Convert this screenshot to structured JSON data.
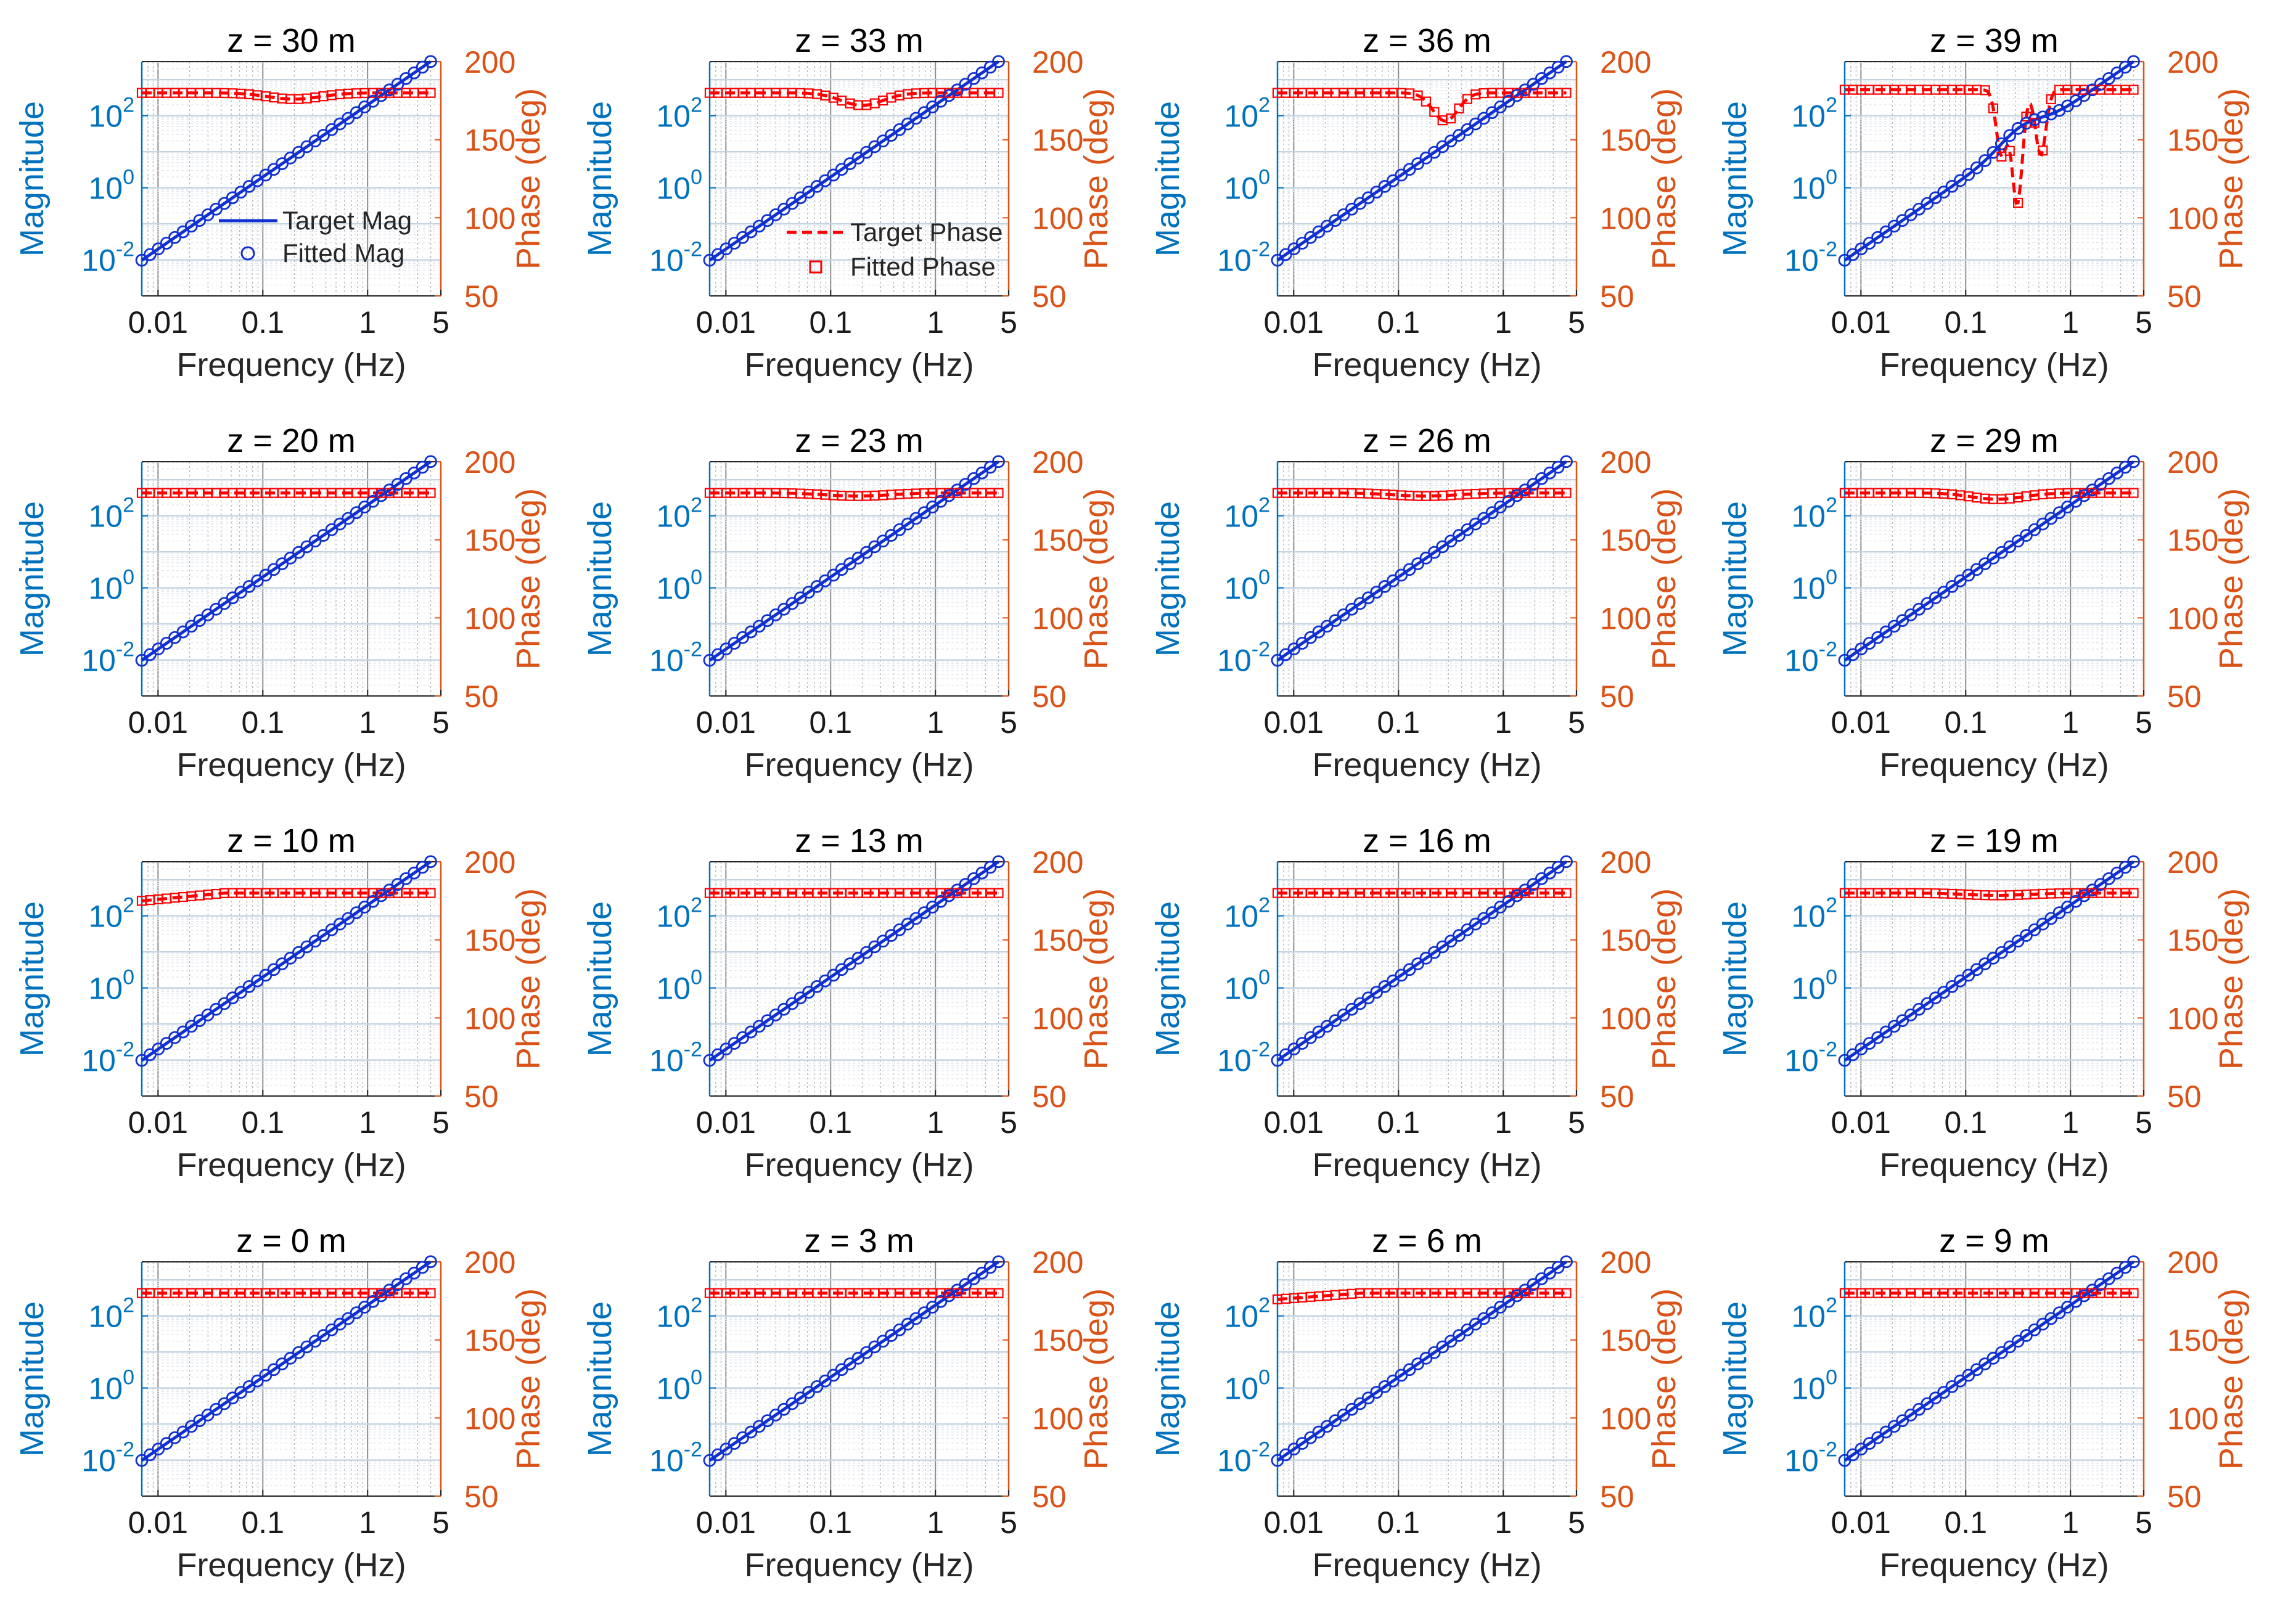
{
  "figure": {
    "xlabel": "Frequency (Hz)",
    "ylabel_left": "Magnitude",
    "ylabel_right": "Phase (deg)",
    "x_ticks": [
      "0.01",
      "0.1",
      "1",
      "5"
    ],
    "mag_ticks": [
      {
        "base": "10",
        "exp": "2"
      },
      {
        "base": "10",
        "exp": "0"
      },
      {
        "base": "10",
        "exp": "-2"
      }
    ],
    "phase_ticks": [
      "200",
      "150",
      "100",
      "50"
    ],
    "legend_mag": [
      "Target Mag",
      "Fitted Mag"
    ],
    "legend_phase": [
      "Target Phase",
      "Fitted Phase"
    ],
    "colors": {
      "left_axis": "#0072BD",
      "right_axis": "#D95319",
      "mag_line": "#1030d0",
      "phase_line": "#ff0000",
      "grid": "#c5d4e2",
      "grid_minor": "#e1e8ef"
    }
  },
  "chart_data": [
    {
      "type": "line",
      "title": "z = 30 m",
      "xlim": [
        0.007,
        5
      ],
      "mag_ylim_log10": [
        -3,
        3.5
      ],
      "phase_ylim": [
        50,
        200
      ],
      "mag_series": {
        "name": "Target Mag",
        "slope_log10_per_decade": 2,
        "log10_mag_at_0_01": -1.7
      },
      "phase_series": {
        "name": "Target Phase",
        "baseline_deg": 180,
        "dips": [
          {
            "center_hz": 0.2,
            "depth_deg": 4,
            "width_decades": 0.25
          }
        ]
      }
    },
    {
      "type": "line",
      "title": "z = 33 m",
      "xlim": [
        0.007,
        5
      ],
      "mag_ylim_log10": [
        -3,
        3.5
      ],
      "phase_ylim": [
        50,
        200
      ],
      "mag_series": {
        "name": "Target Mag",
        "slope_log10_per_decade": 2,
        "log10_mag_at_0_01": -1.7
      },
      "phase_series": {
        "name": "Target Phase",
        "baseline_deg": 180,
        "dips": [
          {
            "center_hz": 0.2,
            "depth_deg": 8,
            "width_decades": 0.2
          }
        ]
      }
    },
    {
      "type": "line",
      "title": "z = 36 m",
      "xlim": [
        0.007,
        5
      ],
      "mag_ylim_log10": [
        -3,
        3.5
      ],
      "phase_ylim": [
        50,
        200
      ],
      "mag_series": {
        "name": "Target Mag",
        "slope_log10_per_decade": 2,
        "log10_mag_at_0_01": -1.7
      },
      "phase_series": {
        "name": "Target Phase",
        "baseline_deg": 180,
        "dips": [
          {
            "center_hz": 0.28,
            "depth_deg": 18,
            "width_decades": 0.12
          }
        ]
      }
    },
    {
      "type": "line",
      "title": "z = 39 m",
      "xlim": [
        0.007,
        5
      ],
      "mag_ylim_log10": [
        -3,
        3.5
      ],
      "phase_ylim": [
        50,
        200
      ],
      "mag_series": {
        "name": "Target Mag",
        "slope_log10_per_decade": 2,
        "log10_mag_at_0_01": -1.7,
        "bump": {
          "center_hz": 0.33,
          "height_log10": 0.35,
          "width_decades": 0.2
        }
      },
      "phase_series": {
        "name": "Target Phase",
        "baseline_deg": 182,
        "dips": [
          {
            "center_hz": 0.22,
            "depth_deg": 42,
            "width_decades": 0.05
          },
          {
            "center_hz": 0.31,
            "depth_deg": 73,
            "width_decades": 0.05
          },
          {
            "center_hz": 0.52,
            "depth_deg": 42,
            "width_decades": 0.05
          }
        ]
      }
    },
    {
      "type": "line",
      "title": "z = 20 m",
      "xlim": [
        0.007,
        5
      ],
      "mag_ylim_log10": [
        -3,
        3.5
      ],
      "phase_ylim": [
        50,
        200
      ],
      "mag_series": {
        "name": "Target Mag",
        "slope_log10_per_decade": 2,
        "log10_mag_at_0_01": -1.7
      },
      "phase_series": {
        "name": "Target Phase",
        "baseline_deg": 180,
        "dips": []
      }
    },
    {
      "type": "line",
      "title": "z = 23 m",
      "xlim": [
        0.007,
        5
      ],
      "mag_ylim_log10": [
        -3,
        3.5
      ],
      "phase_ylim": [
        50,
        200
      ],
      "mag_series": {
        "name": "Target Mag",
        "slope_log10_per_decade": 2,
        "log10_mag_at_0_01": -1.7
      },
      "phase_series": {
        "name": "Target Phase",
        "baseline_deg": 180,
        "dips": [
          {
            "center_hz": 0.18,
            "depth_deg": 2,
            "width_decades": 0.3
          }
        ]
      }
    },
    {
      "type": "line",
      "title": "z = 26 m",
      "xlim": [
        0.007,
        5
      ],
      "mag_ylim_log10": [
        -3,
        3.5
      ],
      "phase_ylim": [
        50,
        200
      ],
      "mag_series": {
        "name": "Target Mag",
        "slope_log10_per_decade": 2,
        "log10_mag_at_0_01": -1.7
      },
      "phase_series": {
        "name": "Target Phase",
        "baseline_deg": 180,
        "dips": [
          {
            "center_hz": 0.18,
            "depth_deg": 2,
            "width_decades": 0.3
          }
        ]
      }
    },
    {
      "type": "line",
      "title": "z = 29 m",
      "xlim": [
        0.007,
        5
      ],
      "mag_ylim_log10": [
        -3,
        3.5
      ],
      "phase_ylim": [
        50,
        200
      ],
      "mag_series": {
        "name": "Target Mag",
        "slope_log10_per_decade": 2,
        "log10_mag_at_0_01": -1.7
      },
      "phase_series": {
        "name": "Target Phase",
        "baseline_deg": 180,
        "dips": [
          {
            "center_hz": 0.2,
            "depth_deg": 4,
            "width_decades": 0.25
          }
        ]
      }
    },
    {
      "type": "line",
      "title": "z = 10 m",
      "xlim": [
        0.007,
        5
      ],
      "mag_ylim_log10": [
        -3,
        3.5
      ],
      "phase_ylim": [
        50,
        200
      ],
      "mag_series": {
        "name": "Target Mag",
        "slope_log10_per_decade": 2,
        "log10_mag_at_0_01": -1.7
      },
      "phase_series": {
        "name": "Target Phase",
        "baseline_deg": 180,
        "low_freq_start_deg": 175,
        "dips": []
      }
    },
    {
      "type": "line",
      "title": "z = 13 m",
      "xlim": [
        0.007,
        5
      ],
      "mag_ylim_log10": [
        -3,
        3.5
      ],
      "phase_ylim": [
        50,
        200
      ],
      "mag_series": {
        "name": "Target Mag",
        "slope_log10_per_decade": 2,
        "log10_mag_at_0_01": -1.7
      },
      "phase_series": {
        "name": "Target Phase",
        "baseline_deg": 180,
        "dips": []
      }
    },
    {
      "type": "line",
      "title": "z = 16 m",
      "xlim": [
        0.007,
        5
      ],
      "mag_ylim_log10": [
        -3,
        3.5
      ],
      "phase_ylim": [
        50,
        200
      ],
      "mag_series": {
        "name": "Target Mag",
        "slope_log10_per_decade": 2,
        "log10_mag_at_0_01": -1.7
      },
      "phase_series": {
        "name": "Target Phase",
        "baseline_deg": 180,
        "dips": []
      }
    },
    {
      "type": "line",
      "title": "z = 19 m",
      "xlim": [
        0.007,
        5
      ],
      "mag_ylim_log10": [
        -3,
        3.5
      ],
      "phase_ylim": [
        50,
        200
      ],
      "mag_series": {
        "name": "Target Mag",
        "slope_log10_per_decade": 2,
        "log10_mag_at_0_01": -1.7
      },
      "phase_series": {
        "name": "Target Phase",
        "baseline_deg": 180,
        "dips": [
          {
            "center_hz": 0.2,
            "depth_deg": 1.5,
            "width_decades": 0.3
          }
        ]
      }
    },
    {
      "type": "line",
      "title": "z = 0 m",
      "xlim": [
        0.007,
        5
      ],
      "mag_ylim_log10": [
        -3,
        3.5
      ],
      "phase_ylim": [
        50,
        200
      ],
      "mag_series": {
        "name": "Target Mag",
        "slope_log10_per_decade": 2,
        "log10_mag_at_0_01": -1.7
      },
      "phase_series": {
        "name": "Target Phase",
        "baseline_deg": 180,
        "dips": []
      }
    },
    {
      "type": "line",
      "title": "z = 3 m",
      "xlim": [
        0.007,
        5
      ],
      "mag_ylim_log10": [
        -3,
        3.5
      ],
      "phase_ylim": [
        50,
        200
      ],
      "mag_series": {
        "name": "Target Mag",
        "slope_log10_per_decade": 2,
        "log10_mag_at_0_01": -1.7
      },
      "phase_series": {
        "name": "Target Phase",
        "baseline_deg": 180,
        "dips": []
      }
    },
    {
      "type": "line",
      "title": "z = 6 m",
      "xlim": [
        0.007,
        5
      ],
      "mag_ylim_log10": [
        -3,
        3.5
      ],
      "phase_ylim": [
        50,
        200
      ],
      "mag_series": {
        "name": "Target Mag",
        "slope_log10_per_decade": 2,
        "log10_mag_at_0_01": -1.7
      },
      "phase_series": {
        "name": "Target Phase",
        "baseline_deg": 180,
        "low_freq_start_deg": 176,
        "dips": []
      }
    },
    {
      "type": "line",
      "title": "z = 9 m",
      "xlim": [
        0.007,
        5
      ],
      "mag_ylim_log10": [
        -3,
        3.5
      ],
      "phase_ylim": [
        50,
        200
      ],
      "mag_series": {
        "name": "Target Mag",
        "slope_log10_per_decade": 2,
        "log10_mag_at_0_01": -1.7
      },
      "phase_series": {
        "name": "Target Phase",
        "baseline_deg": 180,
        "dips": []
      }
    }
  ]
}
